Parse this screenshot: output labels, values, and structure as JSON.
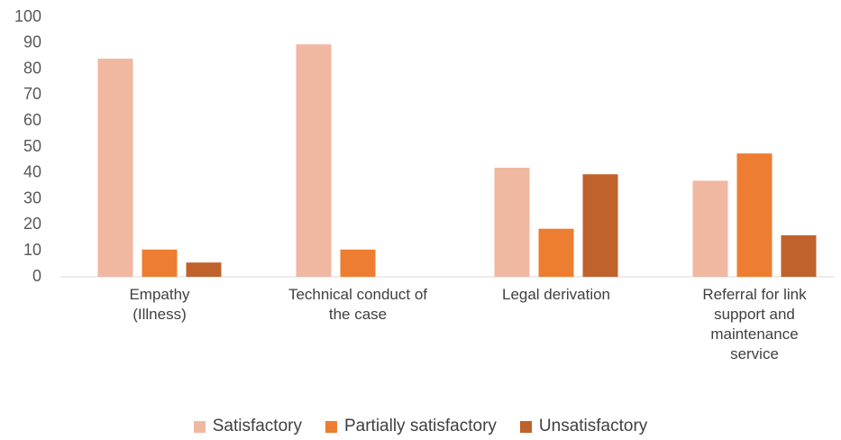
{
  "chart_data": {
    "type": "bar",
    "categories": [
      "Empathy (Illness)",
      "Technical conduct of the case",
      "Legal derivation",
      "Referral for link support and maintenance service"
    ],
    "series": [
      {
        "name": "Satisfactory",
        "color": "#f0b7a1",
        "values": [
          84,
          89.5,
          42,
          37
        ]
      },
      {
        "name": "Partially satisfactory",
        "color": "#ed7d31",
        "values": [
          10.5,
          10.5,
          18.5,
          47.5
        ]
      },
      {
        "name": "Unsatisfactory",
        "color": "#c0622b",
        "values": [
          5.5,
          0,
          39.5,
          16
        ]
      }
    ],
    "ylim": [
      0,
      100
    ],
    "yticks": [
      0,
      10,
      20,
      30,
      40,
      50,
      60,
      70,
      80,
      90,
      100
    ],
    "grid": false,
    "legend": "bottom"
  }
}
